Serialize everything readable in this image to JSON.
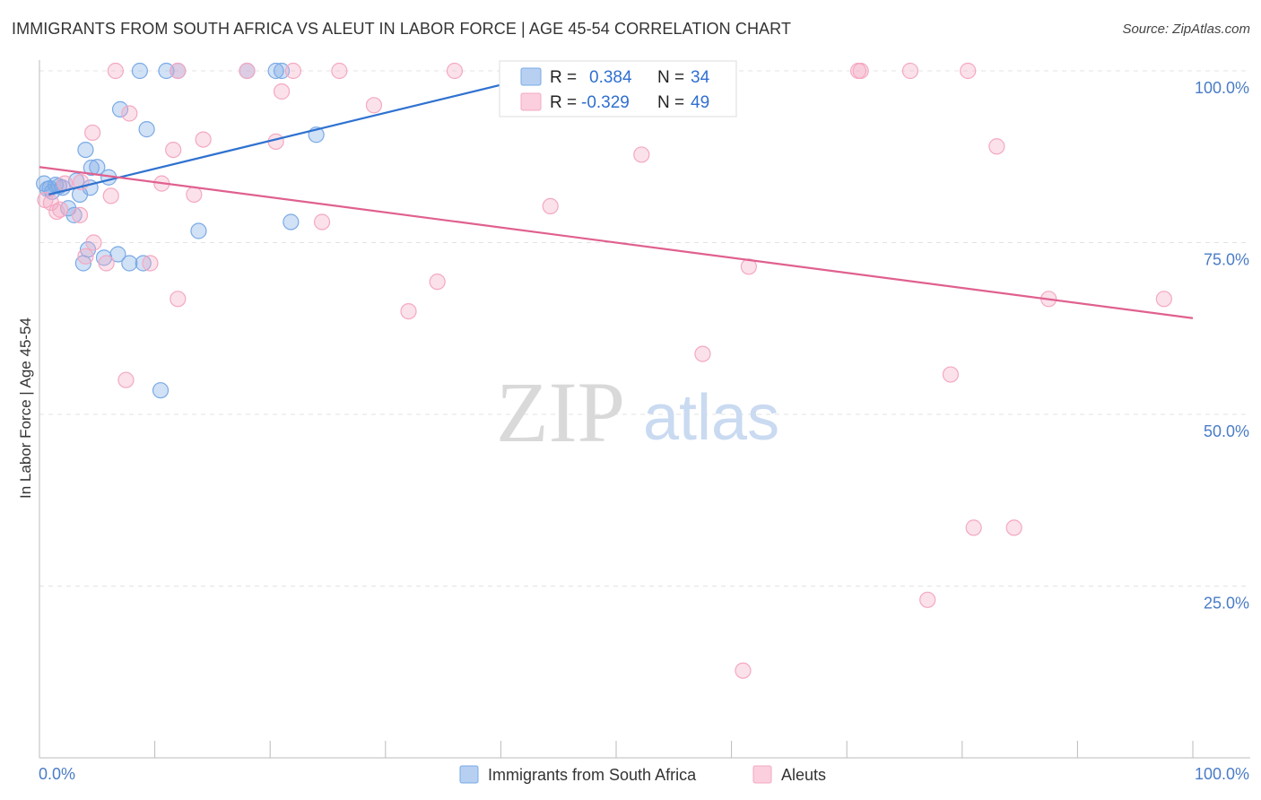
{
  "title": "IMMIGRANTS FROM SOUTH AFRICA VS ALEUT IN LABOR FORCE | AGE 45-54 CORRELATION CHART",
  "source": "Source: ZipAtlas.com",
  "watermark": {
    "zip": "ZIP",
    "atlas": "atlas"
  },
  "legend_box": {
    "rows": [
      {
        "r_label": "R =",
        "r_value": "0.384",
        "n_label": "N =",
        "n_value": "34"
      },
      {
        "r_label": "R =",
        "r_value": "-0.329",
        "n_label": "N =",
        "n_value": "49"
      }
    ]
  },
  "chart_data": {
    "type": "scatter",
    "title": "IMMIGRANTS FROM SOUTH AFRICA VS ALEUT IN LABOR FORCE | AGE 45-54 CORRELATION CHART",
    "xlabel": "",
    "ylabel": "In Labor Force | Age 45-54",
    "xlim": [
      0,
      100
    ],
    "ylim": [
      0,
      100
    ],
    "x_tick_labels": [
      {
        "value": 0,
        "label": "0.0%"
      },
      {
        "value": 100,
        "label": "100.0%"
      }
    ],
    "y_tick_labels": [
      {
        "value": 100,
        "label": "100.0%"
      },
      {
        "value": 75,
        "label": "75.0%"
      },
      {
        "value": 50,
        "label": "50.0%"
      },
      {
        "value": 25,
        "label": "25.0%"
      }
    ],
    "grid": true,
    "legend_position": "bottom-center",
    "series": [
      {
        "name": "Immigrants from South Africa",
        "color": "#7aaae6",
        "line_color": "#2f72d0",
        "r": 0.384,
        "n": 34,
        "trend": {
          "x": [
            0.8,
            45.0
          ],
          "y": [
            82.0,
            100.0
          ]
        },
        "points": [
          {
            "x": 0.4,
            "y": 83.6
          },
          {
            "x": 0.7,
            "y": 82.8
          },
          {
            "x": 0.9,
            "y": 82.9
          },
          {
            "x": 1.1,
            "y": 82.4
          },
          {
            "x": 1.4,
            "y": 83.4
          },
          {
            "x": 1.7,
            "y": 83.2
          },
          {
            "x": 2.0,
            "y": 83.0
          },
          {
            "x": 2.5,
            "y": 80.0
          },
          {
            "x": 3.0,
            "y": 79.0
          },
          {
            "x": 3.2,
            "y": 84.0
          },
          {
            "x": 3.5,
            "y": 82.0
          },
          {
            "x": 3.8,
            "y": 72.0
          },
          {
            "x": 4.0,
            "y": 88.5
          },
          {
            "x": 4.2,
            "y": 74.0
          },
          {
            "x": 4.4,
            "y": 83.0
          },
          {
            "x": 4.5,
            "y": 85.9
          },
          {
            "x": 5.0,
            "y": 86.0
          },
          {
            "x": 5.6,
            "y": 72.8
          },
          {
            "x": 6.0,
            "y": 84.5
          },
          {
            "x": 6.8,
            "y": 73.3
          },
          {
            "x": 7.0,
            "y": 94.4
          },
          {
            "x": 7.8,
            "y": 72.0
          },
          {
            "x": 8.7,
            "y": 100.0
          },
          {
            "x": 9.0,
            "y": 72.0
          },
          {
            "x": 9.3,
            "y": 91.5
          },
          {
            "x": 10.5,
            "y": 53.5
          },
          {
            "x": 11.0,
            "y": 100.0
          },
          {
            "x": 12.0,
            "y": 100.0
          },
          {
            "x": 13.8,
            "y": 76.7
          },
          {
            "x": 18.0,
            "y": 100.0
          },
          {
            "x": 20.5,
            "y": 100.0
          },
          {
            "x": 21.0,
            "y": 100.0
          },
          {
            "x": 21.8,
            "y": 78.0
          },
          {
            "x": 24.0,
            "y": 90.7
          }
        ]
      },
      {
        "name": "Aleuts",
        "color": "#f4a8c2",
        "line_color": "#e0608f",
        "r": -0.329,
        "n": 49,
        "trend": {
          "x": [
            0.0,
            100.0
          ],
          "y": [
            86.0,
            64.0
          ]
        },
        "points": [
          {
            "x": 0.5,
            "y": 81.2
          },
          {
            "x": 1.0,
            "y": 80.8
          },
          {
            "x": 1.5,
            "y": 79.5
          },
          {
            "x": 2.2,
            "y": 83.6
          },
          {
            "x": 3.5,
            "y": 79.0
          },
          {
            "x": 3.6,
            "y": 83.8
          },
          {
            "x": 4.0,
            "y": 73.0
          },
          {
            "x": 4.6,
            "y": 91.0
          },
          {
            "x": 4.7,
            "y": 75.0
          },
          {
            "x": 5.8,
            "y": 72.0
          },
          {
            "x": 6.2,
            "y": 81.8
          },
          {
            "x": 6.6,
            "y": 100.0
          },
          {
            "x": 7.5,
            "y": 55.0
          },
          {
            "x": 7.8,
            "y": 93.8
          },
          {
            "x": 9.6,
            "y": 72.0
          },
          {
            "x": 10.6,
            "y": 83.6
          },
          {
            "x": 11.6,
            "y": 88.5
          },
          {
            "x": 12.0,
            "y": 100.0
          },
          {
            "x": 12.0,
            "y": 66.8
          },
          {
            "x": 13.4,
            "y": 82.0
          },
          {
            "x": 14.2,
            "y": 90.0
          },
          {
            "x": 18.0,
            "y": 100.0
          },
          {
            "x": 20.5,
            "y": 89.7
          },
          {
            "x": 21.0,
            "y": 97.0
          },
          {
            "x": 22.0,
            "y": 100.0
          },
          {
            "x": 24.5,
            "y": 78.0
          },
          {
            "x": 26.0,
            "y": 100.0
          },
          {
            "x": 29.0,
            "y": 95.0
          },
          {
            "x": 32.0,
            "y": 65.0
          },
          {
            "x": 34.5,
            "y": 69.3
          },
          {
            "x": 36.0,
            "y": 100.0
          },
          {
            "x": 44.3,
            "y": 80.3
          },
          {
            "x": 52.2,
            "y": 87.8
          },
          {
            "x": 54.0,
            "y": 100.0
          },
          {
            "x": 57.5,
            "y": 58.8
          },
          {
            "x": 61.0,
            "y": 12.7
          },
          {
            "x": 61.5,
            "y": 71.5
          },
          {
            "x": 71.0,
            "y": 100.0
          },
          {
            "x": 71.2,
            "y": 100.0
          },
          {
            "x": 75.5,
            "y": 100.0
          },
          {
            "x": 77.0,
            "y": 23.0
          },
          {
            "x": 79.0,
            "y": 55.8
          },
          {
            "x": 80.5,
            "y": 100.0
          },
          {
            "x": 81.0,
            "y": 33.5
          },
          {
            "x": 83.0,
            "y": 89.0
          },
          {
            "x": 84.5,
            "y": 33.5
          },
          {
            "x": 87.5,
            "y": 66.8
          },
          {
            "x": 97.5,
            "y": 66.8
          },
          {
            "x": 1.8,
            "y": 79.8
          }
        ]
      }
    ]
  }
}
